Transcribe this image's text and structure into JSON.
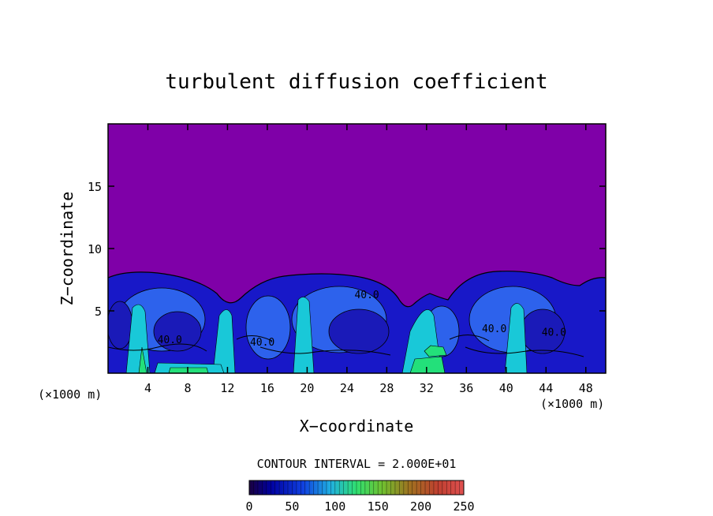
{
  "chart_data": {
    "type": "heatmap",
    "title": "turbulent diffusion coefficient",
    "xlabel": "X−coordinate",
    "ylabel": "Z−coordinate",
    "x_unit_left": "(×1000 m)",
    "x_unit_right": "(×1000 m)",
    "xlim": [
      0,
      50
    ],
    "ylim": [
      0,
      20
    ],
    "xticks": [
      4,
      8,
      12,
      16,
      20,
      24,
      28,
      32,
      36,
      40,
      44,
      48
    ],
    "yticks": [
      5,
      10,
      15
    ],
    "contour_interval_text": "CONTOUR INTERVAL = 2.000E+01",
    "contour_labels": [
      {
        "x": 26,
        "z": 6.0,
        "text": "40.0"
      },
      {
        "x": 15.5,
        "z": 2.2,
        "text": "40.0"
      },
      {
        "x": 6.2,
        "z": 2.4,
        "text": "40.0"
      },
      {
        "x": 38.8,
        "z": 3.3,
        "text": "40.0"
      },
      {
        "x": 44.8,
        "z": 3.0,
        "text": "40.0"
      }
    ],
    "colorbar": {
      "min": 0,
      "max": 250,
      "ticks": [
        0,
        50,
        100,
        150,
        200,
        250
      ]
    },
    "colors": {
      "background_field": "#7f00a8",
      "low": "#1010c8",
      "mid": "#2d6cf0",
      "cyan": "#19c8d8",
      "green": "#23e07a"
    }
  }
}
